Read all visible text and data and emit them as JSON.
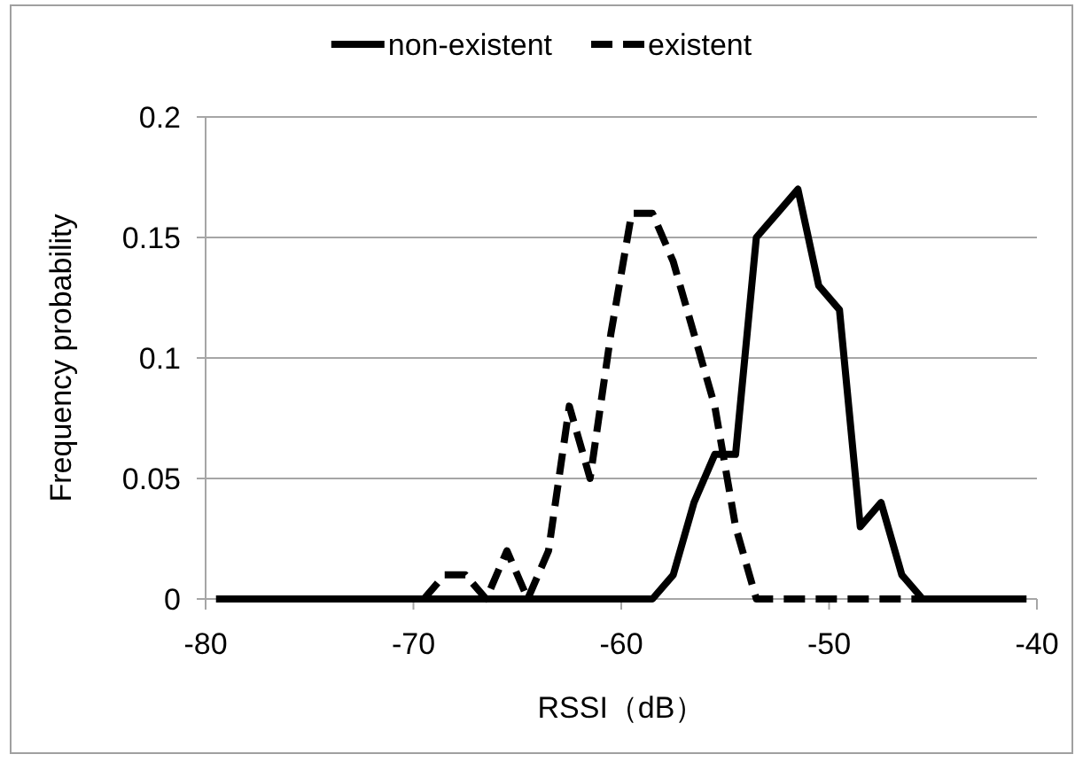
{
  "chart_data": {
    "type": "line",
    "xlabel": "RSSI（dB）",
    "ylabel": "Frequency probability",
    "xlim": [
      -80,
      -40
    ],
    "xticks": [
      -80,
      -70,
      -60,
      -50,
      -40
    ],
    "ylim": [
      0,
      0.2
    ],
    "yticks": [
      0,
      0.05,
      0.1,
      0.15,
      0.2
    ],
    "grid": "y",
    "legend": "top",
    "series": [
      {
        "name": "non-existent",
        "color": "#000000",
        "line_style": "solid",
        "x": [
          -79.5,
          -78.5,
          -77.5,
          -76.5,
          -75.5,
          -74.5,
          -73.5,
          -72.5,
          -71.5,
          -70.5,
          -69.5,
          -68.5,
          -67.5,
          -66.5,
          -65.5,
          -64.5,
          -63.5,
          -62.5,
          -61.5,
          -60.5,
          -59.5,
          -58.5,
          -57.5,
          -56.5,
          -55.5,
          -54.5,
          -53.5,
          -52.5,
          -51.5,
          -50.5,
          -49.5,
          -48.5,
          -47.5,
          -46.5,
          -45.5,
          -44.5,
          -43.5,
          -42.5,
          -41.5,
          -40.5
        ],
        "values": [
          0,
          0,
          0,
          0,
          0,
          0,
          0,
          0,
          0,
          0,
          0,
          0,
          0,
          0,
          0,
          0,
          0,
          0,
          0,
          0,
          0,
          0,
          0.01,
          0.04,
          0.06,
          0.06,
          0.15,
          0.16,
          0.17,
          0.13,
          0.12,
          0.03,
          0.04,
          0.01,
          0,
          0,
          0,
          0,
          0,
          0
        ]
      },
      {
        "name": "existent",
        "color": "#000000",
        "line_style": "dashed",
        "x": [
          -69.5,
          -68.5,
          -67.5,
          -66.5,
          -65.5,
          -64.5,
          -63.5,
          -62.5,
          -61.5,
          -60.5,
          -59.5,
          -58.5,
          -57.5,
          -56.5,
          -55.5,
          -54.5,
          -53.5,
          -52.5,
          -51.5,
          -50.5,
          -49.5,
          -48.5,
          -47.5,
          -46.5,
          -45.5
        ],
        "values": [
          0,
          0.01,
          0.01,
          0,
          0.02,
          0,
          0.02,
          0.08,
          0.05,
          0.11,
          0.16,
          0.16,
          0.14,
          0.11,
          0.08,
          0.03,
          0,
          0,
          0,
          0,
          0,
          0,
          0,
          0,
          0
        ]
      }
    ]
  }
}
